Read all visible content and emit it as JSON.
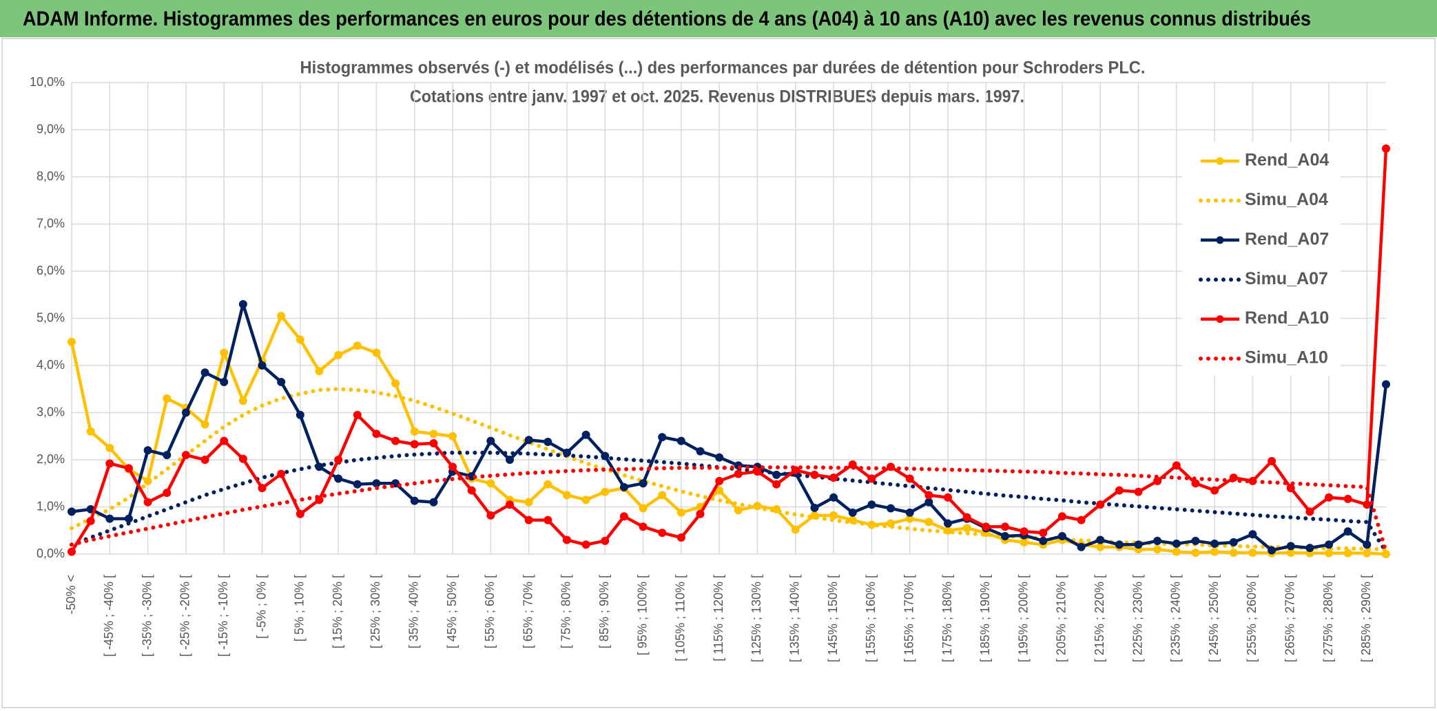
{
  "chart_data": {
    "type": "line",
    "title": "ADAM Informe. Histogrammes des performances en euros pour des détentions de 4 ans (A04) à 10 ans (A10) avec les revenus connus distribués",
    "subtitle": [
      "Histogrammes observés (-) et modélisés (...) des performances par durées de détention pour Schroders PLC.",
      "Cotations entre janv. 1997 et oct. 2025. Revenus DISTRIBUES depuis mars. 1997."
    ],
    "categories": [
      "-50% <",
      null,
      "[ -45% ; -40% [",
      null,
      "[ -35% ; -30% [",
      null,
      "[ -25% ; -20% [",
      null,
      "[ -15% ; -10% [",
      null,
      "[ -5% ; 0% [",
      null,
      "[ 5% ; 10% [",
      null,
      "[ 15% ; 20% [",
      null,
      "[ 25% ; 30% [",
      null,
      "[ 35% ; 40% [",
      null,
      "[ 45% ; 50% [",
      null,
      "[ 55% ; 60% [",
      null,
      "[ 65% ; 70% [",
      null,
      "[ 75% ; 80% [",
      null,
      "[ 85% ; 90% [",
      null,
      "[ 95% ; 100% [",
      null,
      "[ 105% ; 110% [",
      null,
      "[ 115% ; 120% [",
      null,
      "[ 125% ; 130% [",
      null,
      "[ 135% ; 140% [",
      null,
      "[ 145% ; 150% [",
      null,
      "[ 155% ; 160% [",
      null,
      "[ 165% ; 170% [",
      null,
      "[ 175% ; 180% [",
      null,
      "[ 185% ; 190% [",
      null,
      "[ 195% ; 200% [",
      null,
      "[ 205% ; 210% [",
      null,
      "[ 215% ; 220% [",
      null,
      "[ 225% ; 230% [",
      null,
      "[ 235% ; 240% [",
      null,
      "[ 245% ; 250% [",
      null,
      "[ 255% ; 260% [",
      null,
      "[ 265% ; 270% [",
      null,
      "[ 275% ; 280% [",
      null,
      "[ 285% ; 290% [",
      null
    ],
    "series": [
      {
        "name": "Rend_A04",
        "color": "#ffc000",
        "line_style": "solid",
        "markers": true,
        "values": [
          4.5,
          2.6,
          2.25,
          1.8,
          1.55,
          3.3,
          3.1,
          2.75,
          4.27,
          3.25,
          4.1,
          5.05,
          4.55,
          3.88,
          4.22,
          4.42,
          4.27,
          3.62,
          2.6,
          2.55,
          2.5,
          1.6,
          1.5,
          1.15,
          1.1,
          1.48,
          1.25,
          1.15,
          1.32,
          1.4,
          0.97,
          1.25,
          0.88,
          1.0,
          1.35,
          0.93,
          1.02,
          0.95,
          0.52,
          0.82,
          0.82,
          0.72,
          0.62,
          0.65,
          0.75,
          0.68,
          0.5,
          0.55,
          0.45,
          0.3,
          0.25,
          0.2,
          0.3,
          0.2,
          0.15,
          0.15,
          0.1,
          0.1,
          0.05,
          0.03,
          0.05,
          0.03,
          0.03,
          0.02,
          0.03,
          0.02,
          0.02,
          0.02,
          0.02,
          0.0
        ]
      },
      {
        "name": "Simu_A04",
        "color": "#ffc000",
        "line_style": "dotted",
        "markers": false,
        "values": [
          0.55,
          0.75,
          0.95,
          1.2,
          1.5,
          1.8,
          2.1,
          2.4,
          2.7,
          2.95,
          3.15,
          3.3,
          3.4,
          3.48,
          3.5,
          3.48,
          3.43,
          3.35,
          3.25,
          3.12,
          2.98,
          2.83,
          2.68,
          2.52,
          2.37,
          2.22,
          2.07,
          1.93,
          1.8,
          1.67,
          1.55,
          1.44,
          1.33,
          1.23,
          1.14,
          1.06,
          0.98,
          0.91,
          0.84,
          0.78,
          0.72,
          0.67,
          0.62,
          0.58,
          0.54,
          0.5,
          0.47,
          0.44,
          0.41,
          0.38,
          0.36,
          0.33,
          0.31,
          0.29,
          0.27,
          0.25,
          0.24,
          0.22,
          0.21,
          0.2,
          0.18,
          0.17,
          0.16,
          0.15,
          0.14,
          0.13,
          0.12,
          0.12,
          0.11,
          0.1
        ]
      },
      {
        "name": "Rend_A07",
        "color": "#002060",
        "line_style": "solid",
        "markers": true,
        "values": [
          0.9,
          0.95,
          0.75,
          0.75,
          2.2,
          2.1,
          3.0,
          3.85,
          3.65,
          5.3,
          4.0,
          3.65,
          2.95,
          1.85,
          1.6,
          1.48,
          1.5,
          1.5,
          1.13,
          1.1,
          1.75,
          1.65,
          2.4,
          2.0,
          2.42,
          2.38,
          2.15,
          2.53,
          2.08,
          1.42,
          1.5,
          2.48,
          2.4,
          2.18,
          2.05,
          1.88,
          1.85,
          1.68,
          1.72,
          0.98,
          1.2,
          0.88,
          1.05,
          0.97,
          0.88,
          1.1,
          0.65,
          0.75,
          0.55,
          0.38,
          0.4,
          0.28,
          0.38,
          0.15,
          0.3,
          0.2,
          0.2,
          0.28,
          0.22,
          0.28,
          0.22,
          0.25,
          0.42,
          0.08,
          0.17,
          0.13,
          0.2,
          0.48,
          0.2,
          3.6
        ]
      },
      {
        "name": "Simu_A07",
        "color": "#002060",
        "line_style": "dotted",
        "markers": false,
        "values": [
          0.2,
          0.35,
          0.5,
          0.65,
          0.8,
          0.95,
          1.1,
          1.25,
          1.38,
          1.5,
          1.62,
          1.72,
          1.8,
          1.88,
          1.94,
          2.0,
          2.04,
          2.08,
          2.11,
          2.13,
          2.15,
          2.15,
          2.15,
          2.14,
          2.13,
          2.11,
          2.09,
          2.07,
          2.04,
          2.01,
          1.98,
          1.95,
          1.92,
          1.88,
          1.84,
          1.8,
          1.76,
          1.72,
          1.68,
          1.64,
          1.6,
          1.56,
          1.52,
          1.48,
          1.44,
          1.4,
          1.36,
          1.32,
          1.28,
          1.24,
          1.21,
          1.17,
          1.14,
          1.1,
          1.07,
          1.04,
          1.01,
          0.98,
          0.95,
          0.92,
          0.89,
          0.86,
          0.83,
          0.8,
          0.78,
          0.75,
          0.73,
          0.7,
          0.68,
          0.05
        ]
      },
      {
        "name": "Rend_A10",
        "color": "#ff0000",
        "line_style": "solid",
        "markers": true,
        "values": [
          0.05,
          0.7,
          1.92,
          1.82,
          1.1,
          1.3,
          2.1,
          2.0,
          2.4,
          2.02,
          1.4,
          1.7,
          0.85,
          1.15,
          2.0,
          2.95,
          2.55,
          2.4,
          2.33,
          2.35,
          1.85,
          1.35,
          0.82,
          1.05,
          0.72,
          0.72,
          0.3,
          0.2,
          0.28,
          0.8,
          0.58,
          0.45,
          0.35,
          0.85,
          1.55,
          1.7,
          1.75,
          1.48,
          1.78,
          1.68,
          1.62,
          1.9,
          1.6,
          1.85,
          1.6,
          1.25,
          1.2,
          0.78,
          0.58,
          0.58,
          0.48,
          0.45,
          0.8,
          0.72,
          1.05,
          1.35,
          1.32,
          1.55,
          1.88,
          1.5,
          1.35,
          1.62,
          1.55,
          1.97,
          1.4,
          0.9,
          1.2,
          1.17,
          1.05,
          8.6
        ]
      },
      {
        "name": "Simu_A10",
        "color": "#ff0000",
        "line_style": "dotted",
        "markers": false,
        "values": [
          0.2,
          0.3,
          0.38,
          0.46,
          0.54,
          0.62,
          0.7,
          0.78,
          0.86,
          0.94,
          1.01,
          1.08,
          1.15,
          1.22,
          1.28,
          1.34,
          1.4,
          1.45,
          1.5,
          1.55,
          1.59,
          1.63,
          1.66,
          1.69,
          1.72,
          1.74,
          1.76,
          1.78,
          1.79,
          1.8,
          1.81,
          1.82,
          1.83,
          1.83,
          1.83,
          1.84,
          1.84,
          1.84,
          1.84,
          1.84,
          1.83,
          1.83,
          1.82,
          1.82,
          1.81,
          1.8,
          1.79,
          1.78,
          1.77,
          1.76,
          1.75,
          1.74,
          1.72,
          1.71,
          1.69,
          1.68,
          1.66,
          1.64,
          1.62,
          1.6,
          1.58,
          1.56,
          1.54,
          1.52,
          1.5,
          1.48,
          1.46,
          1.44,
          1.42,
          0.05
        ]
      }
    ],
    "ylim": [
      0,
      10
    ],
    "yticks": [
      {
        "value": 0,
        "label": "0,0%"
      },
      {
        "value": 1,
        "label": "1,0%"
      },
      {
        "value": 2,
        "label": "2,0%"
      },
      {
        "value": 3,
        "label": "3,0%"
      },
      {
        "value": 4,
        "label": "4,0%"
      },
      {
        "value": 5,
        "label": "5,0%"
      },
      {
        "value": 6,
        "label": "6,0%"
      },
      {
        "value": 7,
        "label": "7,0%"
      },
      {
        "value": 8,
        "label": "8,0%"
      },
      {
        "value": 9,
        "label": "9,0%"
      },
      {
        "value": 10,
        "label": "10,0%"
      }
    ],
    "grid": true,
    "legend": "right"
  }
}
